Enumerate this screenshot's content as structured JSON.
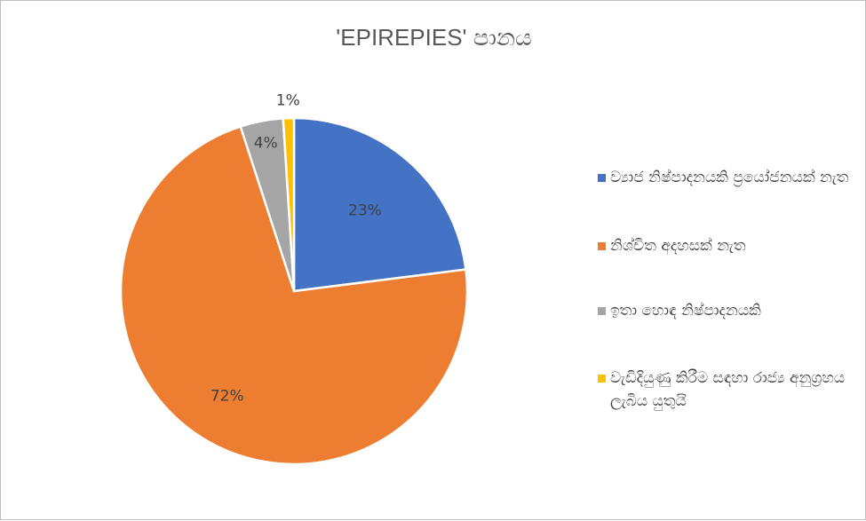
{
  "chart_data": {
    "type": "pie",
    "title": "'EPIREPIES' පානය",
    "slices": [
      {
        "label": "ව්‍යාජ නිෂ්පාදනයකි ප්‍රයෝජනයක් නැත",
        "value": 23,
        "data_label": "23%",
        "color": "#4472C4"
      },
      {
        "label": "නිශ්චිත අදහසක් නැත",
        "value": 72,
        "data_label": "72%",
        "color": "#ED7D31"
      },
      {
        "label": "ඉතා හොඳ නිෂ්පාදනයකි",
        "value": 4,
        "data_label": "4%",
        "color": "#A5A5A5"
      },
      {
        "label": "වැඩිදියුණු කිරීම සඳහා රාජ්‍ය අනුග්‍රහය ලැබිය යුතුයි",
        "value": 1,
        "data_label": "1%",
        "color": "#FFC000"
      }
    ],
    "legend_position": "right"
  }
}
